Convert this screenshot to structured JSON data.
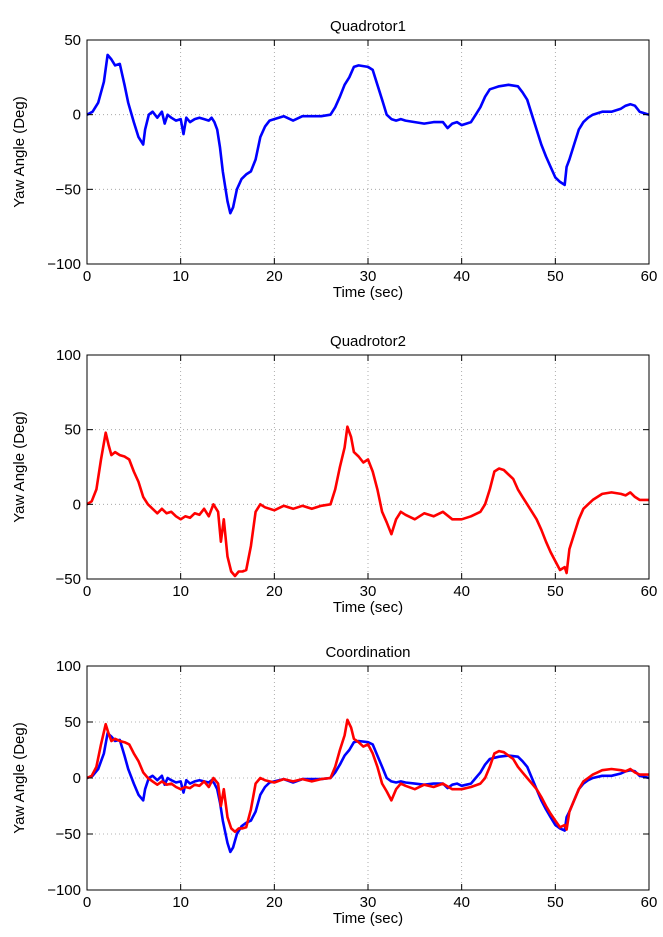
{
  "chart_data": [
    {
      "type": "line",
      "title": "Quadrotor1",
      "xlabel": "Time (sec)",
      "ylabel": "Yaw Angle (Deg)",
      "xlim": [
        0,
        60
      ],
      "ylim": [
        -100,
        50
      ],
      "xticks": [
        0,
        10,
        20,
        30,
        40,
        50,
        60
      ],
      "yticks": [
        -100,
        -50,
        0,
        50
      ],
      "xtick_labels": [
        "0",
        "10",
        "20",
        "30",
        "40",
        "50",
        "60"
      ],
      "ytick_labels": [
        "−100",
        "−50",
        "0",
        "50"
      ],
      "grid": true,
      "series": [
        {
          "color": "#0000ff",
          "x": [
            0,
            0.6,
            1.2,
            1.8,
            2.2,
            2.6,
            3.0,
            3.5,
            4.0,
            4.4,
            5.0,
            5.5,
            6.0,
            6.2,
            6.6,
            7.0,
            7.5,
            8.0,
            8.3,
            8.6,
            9.0,
            9.5,
            10.0,
            10.3,
            10.6,
            11.0,
            11.5,
            12.0,
            12.5,
            13.0,
            13.3,
            13.6,
            13.9,
            14.2,
            14.5,
            14.8,
            15.0,
            15.3,
            15.6,
            16.0,
            16.5,
            17.0,
            17.5,
            18.0,
            18.5,
            19.0,
            19.5,
            20.0,
            21.0,
            22.0,
            23.0,
            24.0,
            25.0,
            26.0,
            26.5,
            27.0,
            27.5,
            28.0,
            28.5,
            29.0,
            30.0,
            30.5,
            31.0,
            31.5,
            32.0,
            32.5,
            33.0,
            33.5,
            34.0,
            35.0,
            36.0,
            37.0,
            38.0,
            38.5,
            39.0,
            39.5,
            40.0,
            40.5,
            41.0,
            41.5,
            42.0,
            42.5,
            43.0,
            43.5,
            44.0,
            45.0,
            46.0,
            46.5,
            47.0,
            47.5,
            48.0,
            48.5,
            49.0,
            49.5,
            50.0,
            50.5,
            51.0,
            51.2,
            51.5,
            52.0,
            52.5,
            53.0,
            53.5,
            54.0,
            55.0,
            56.0,
            57.0,
            57.5,
            58.0,
            58.5,
            59.0,
            59.5,
            60.0
          ],
          "values": [
            0,
            2,
            8,
            22,
            40,
            37,
            33,
            34,
            20,
            8,
            -5,
            -15,
            -20,
            -10,
            0,
            2,
            -2,
            2,
            -6,
            0,
            -2,
            -4,
            -3,
            -13,
            -2,
            -5,
            -3,
            -2,
            -3,
            -4,
            -2,
            -5,
            -10,
            -22,
            -38,
            -50,
            -58,
            -66,
            -62,
            -50,
            -43,
            -40,
            -38,
            -30,
            -15,
            -8,
            -4,
            -3,
            -1,
            -4,
            -1,
            -1,
            -1,
            0,
            5,
            12,
            20,
            25,
            32,
            33,
            32,
            30,
            20,
            10,
            0,
            -3,
            -4,
            -3,
            -4,
            -5,
            -6,
            -5,
            -5,
            -9,
            -6,
            -5,
            -7,
            -6,
            -5,
            0,
            5,
            12,
            17,
            18,
            19,
            20,
            19,
            15,
            10,
            0,
            -10,
            -20,
            -28,
            -35,
            -42,
            -45,
            -47,
            -35,
            -30,
            -20,
            -10,
            -5,
            -2,
            0,
            2,
            2,
            4,
            6,
            7,
            6,
            2,
            1,
            0
          ]
        }
      ]
    },
    {
      "type": "line",
      "title": "Quadrotor2",
      "xlabel": "Time (sec)",
      "ylabel": "Yaw Angle (Deg)",
      "xlim": [
        0,
        60
      ],
      "ylim": [
        -50,
        100
      ],
      "xticks": [
        0,
        10,
        20,
        30,
        40,
        50,
        60
      ],
      "yticks": [
        -50,
        0,
        50,
        100
      ],
      "xtick_labels": [
        "0",
        "10",
        "20",
        "30",
        "40",
        "50",
        "60"
      ],
      "ytick_labels": [
        "−50",
        "0",
        "50",
        "100"
      ],
      "grid": true,
      "series": [
        {
          "color": "#ff0000",
          "x": [
            0,
            0.5,
            1.0,
            1.5,
            2.0,
            2.3,
            2.6,
            3.0,
            3.5,
            4.0,
            4.5,
            5.0,
            5.5,
            6.0,
            6.5,
            7.0,
            7.5,
            8.0,
            8.5,
            9.0,
            9.5,
            10.0,
            10.5,
            11.0,
            11.5,
            12.0,
            12.5,
            13.0,
            13.5,
            14.0,
            14.3,
            14.6,
            15.0,
            15.4,
            15.8,
            16.2,
            16.6,
            17.0,
            17.5,
            18.0,
            18.5,
            19.0,
            20.0,
            21.0,
            22.0,
            23.0,
            24.0,
            25.0,
            26.0,
            26.5,
            27.0,
            27.5,
            27.8,
            28.2,
            28.5,
            29.0,
            29.5,
            30.0,
            30.5,
            31.0,
            31.5,
            32.0,
            32.5,
            33.0,
            33.5,
            34.0,
            35.0,
            36.0,
            37.0,
            38.0,
            39.0,
            40.0,
            41.0,
            42.0,
            42.5,
            43.0,
            43.5,
            44.0,
            44.5,
            45.0,
            45.5,
            46.0,
            46.5,
            47.0,
            47.5,
            48.0,
            48.5,
            49.0,
            49.5,
            50.0,
            50.5,
            51.0,
            51.2,
            51.5,
            52.0,
            52.5,
            53.0,
            53.5,
            54.0,
            54.5,
            55.0,
            56.0,
            57.0,
            57.5,
            58.0,
            58.5,
            59.0,
            60.0
          ],
          "values": [
            0,
            2,
            10,
            30,
            48,
            40,
            33,
            35,
            33,
            32,
            30,
            22,
            15,
            5,
            0,
            -3,
            -6,
            -3,
            -6,
            -5,
            -8,
            -10,
            -8,
            -9,
            -6,
            -7,
            -3,
            -8,
            0,
            -5,
            -25,
            -10,
            -35,
            -45,
            -48,
            -45,
            -45,
            -44,
            -28,
            -5,
            0,
            -2,
            -4,
            -1,
            -3,
            -1,
            -3,
            -1,
            0,
            10,
            25,
            38,
            52,
            45,
            35,
            32,
            28,
            30,
            22,
            10,
            -5,
            -12,
            -20,
            -10,
            -5,
            -7,
            -10,
            -6,
            -8,
            -5,
            -10,
            -10,
            -8,
            -5,
            0,
            10,
            22,
            24,
            23,
            20,
            17,
            10,
            5,
            0,
            -5,
            -10,
            -17,
            -25,
            -32,
            -38,
            -44,
            -42,
            -46,
            -30,
            -20,
            -10,
            -3,
            0,
            3,
            5,
            7,
            8,
            7,
            6,
            8,
            5,
            3,
            3
          ]
        }
      ]
    },
    {
      "type": "line",
      "title": "Coordination",
      "xlabel": "Time (sec)",
      "ylabel": "Yaw Angle (Deg)",
      "xlim": [
        0,
        60
      ],
      "ylim": [
        -100,
        100
      ],
      "xticks": [
        0,
        10,
        20,
        30,
        40,
        50,
        60
      ],
      "yticks": [
        -100,
        -50,
        0,
        50,
        100
      ],
      "xtick_labels": [
        "0",
        "10",
        "20",
        "30",
        "40",
        "50",
        "60"
      ],
      "ytick_labels": [
        "−100",
        "−50",
        "0",
        "50",
        "100"
      ],
      "grid": true,
      "series": [
        {
          "color": "#0000ff",
          "ref": 0
        },
        {
          "color": "#ff0000",
          "ref": 1
        }
      ]
    }
  ]
}
